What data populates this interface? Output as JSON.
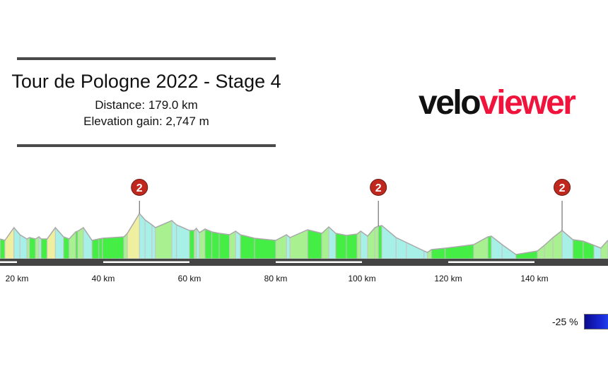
{
  "header": {
    "title": "Tour de Pologne 2022 - Stage 4",
    "distance": "Distance: 179.0 km",
    "elevation_gain": "Elevation gain: 2,747 m"
  },
  "logo": {
    "part1": "velo",
    "part2": "viewer",
    "color1": "#111111",
    "color2": "#f0143c"
  },
  "legend": {
    "label": "-25 %",
    "color": "#1a2ad8"
  },
  "chart_data": {
    "type": "area",
    "title": "",
    "xlabel": "",
    "ylabel": "",
    "x_unit": "km",
    "xlim": [
      16.1,
      157.0
    ],
    "x_ticks": [
      {
        "value": 20,
        "label": "20 km"
      },
      {
        "value": 40,
        "label": "40 km"
      },
      {
        "value": 60,
        "label": "60 km"
      },
      {
        "value": 80,
        "label": "80 km"
      },
      {
        "value": 100,
        "label": "100 km"
      },
      {
        "value": 120,
        "label": "120 km"
      },
      {
        "value": 140,
        "label": "140 km"
      }
    ],
    "grid": false,
    "colored_by": "gradient",
    "gradient_palette": [
      {
        "max": -4,
        "color": "#55eef0"
      },
      {
        "max": -1,
        "color": "#a6f0e8"
      },
      {
        "max": 1,
        "color": "#44ee44"
      },
      {
        "max": 3,
        "color": "#a8f090"
      },
      {
        "max": 5,
        "color": "#eef0a0"
      },
      {
        "max": 99,
        "color": "#f0f040"
      }
    ],
    "profile_km": [
      16.1,
      17.2,
      19.3,
      20.7,
      22.3,
      22.9,
      24.3,
      25.1,
      25.6,
      27.0,
      28.9,
      30.8,
      32.1,
      33.6,
      34.1,
      35.4,
      37.4,
      39.0,
      39.8,
      44.8,
      45.6,
      48.4,
      49.7,
      51.3,
      52.1,
      55.9,
      57.0,
      60.0,
      61.1,
      61.6,
      62.3,
      63.6,
      65.2,
      66.9,
      69.3,
      70.7,
      71.8,
      75.1,
      80.0,
      82.5,
      83.3,
      87.4,
      90.7,
      92.3,
      93.9,
      96.4,
      98.9,
      99.7,
      101.3,
      103.0,
      103.8,
      104.6,
      107.9,
      110.3,
      114.4,
      115.2,
      116.1,
      119.3,
      125.9,
      129.2,
      130.0,
      132.5,
      135.7,
      140.7,
      142.3,
      144.3,
      146.4,
      148.9,
      151.3,
      153.8,
      155.4,
      157.0
    ],
    "profile_elevation_m": [
      262,
      254,
      326,
      286,
      262,
      270,
      262,
      274,
      262,
      262,
      326,
      274,
      262,
      302,
      306,
      326,
      254,
      262,
      266,
      274,
      294,
      406,
      370,
      342,
      326,
      366,
      342,
      310,
      310,
      322,
      298,
      318,
      302,
      294,
      286,
      306,
      286,
      266,
      254,
      286,
      270,
      314,
      294,
      330,
      294,
      282,
      290,
      306,
      278,
      326,
      334,
      338,
      270,
      242,
      194,
      186,
      202,
      210,
      230,
      274,
      278,
      230,
      174,
      194,
      226,
      270,
      310,
      258,
      250,
      226,
      210,
      254
    ],
    "climbs": [
      {
        "km": 48.4,
        "category": "2"
      },
      {
        "km": 103.8,
        "category": "2"
      },
      {
        "km": 146.4,
        "category": "2"
      }
    ]
  }
}
